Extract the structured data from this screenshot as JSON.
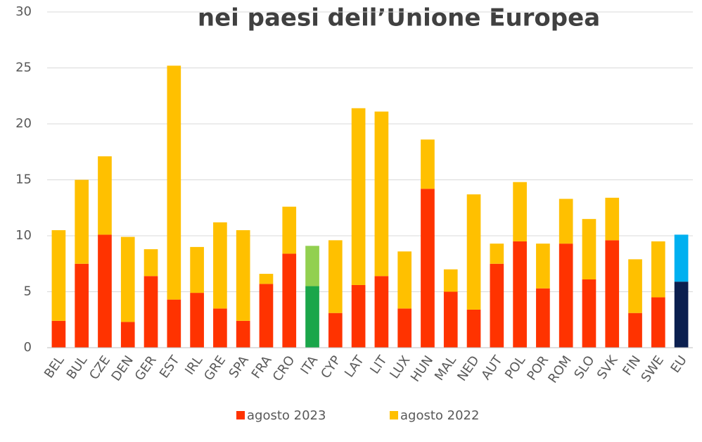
{
  "chart_data": {
    "type": "stacked_bar",
    "title": "nei paesi dell’Unione Europea",
    "categories": [
      "BEL",
      "BUL",
      "CZE",
      "DEN",
      "GER",
      "EST",
      "IRL",
      "GRE",
      "SPA",
      "FRA",
      "CRO",
      "ITA",
      "CYP",
      "LAT",
      "LIT",
      "LUX",
      "HUN",
      "MAL",
      "NED",
      "AUT",
      "POL",
      "POR",
      "ROM",
      "SLO",
      "SVK",
      "FIN",
      "SWE",
      "EU"
    ],
    "series": [
      {
        "name": "agosto 2023",
        "color": "#ff3300",
        "values": [
          2.4,
          7.5,
          10.1,
          2.3,
          6.4,
          4.3,
          4.9,
          3.5,
          2.4,
          5.7,
          8.4,
          5.5,
          3.1,
          5.6,
          6.4,
          3.5,
          14.2,
          5.0,
          3.4,
          7.5,
          9.5,
          5.3,
          9.3,
          6.1,
          9.6,
          3.1,
          4.5,
          5.9
        ],
        "colors": [
          "#ff3300",
          "#ff3300",
          "#ff3300",
          "#ff3300",
          "#ff3300",
          "#ff3300",
          "#ff3300",
          "#ff3300",
          "#ff3300",
          "#ff3300",
          "#ff3300",
          "#1aa64a",
          "#ff3300",
          "#ff3300",
          "#ff3300",
          "#ff3300",
          "#ff3300",
          "#ff3300",
          "#ff3300",
          "#ff3300",
          "#ff3300",
          "#ff3300",
          "#ff3300",
          "#ff3300",
          "#ff3300",
          "#ff3300",
          "#ff3300",
          "#0b1f4f"
        ]
      },
      {
        "name": "agosto 2022",
        "color": "#ffc000",
        "values": [
          8.1,
          7.5,
          7.0,
          7.6,
          2.4,
          20.9,
          4.1,
          7.7,
          8.1,
          0.9,
          4.2,
          3.6,
          6.5,
          15.8,
          14.7,
          5.1,
          4.4,
          2.0,
          10.3,
          1.8,
          5.3,
          4.0,
          4.0,
          5.4,
          3.8,
          4.8,
          5.0,
          4.2
        ],
        "colors": [
          "#ffc000",
          "#ffc000",
          "#ffc000",
          "#ffc000",
          "#ffc000",
          "#ffc000",
          "#ffc000",
          "#ffc000",
          "#ffc000",
          "#ffc000",
          "#ffc000",
          "#92d050",
          "#ffc000",
          "#ffc000",
          "#ffc000",
          "#ffc000",
          "#ffc000",
          "#ffc000",
          "#ffc000",
          "#ffc000",
          "#ffc000",
          "#ffc000",
          "#ffc000",
          "#ffc000",
          "#ffc000",
          "#ffc000",
          "#ffc000",
          "#00b0f0"
        ]
      }
    ],
    "ylim": [
      0,
      30
    ],
    "yticks": [
      0,
      5,
      10,
      15,
      20,
      25,
      30
    ],
    "grid": true,
    "legend": "bottom"
  }
}
